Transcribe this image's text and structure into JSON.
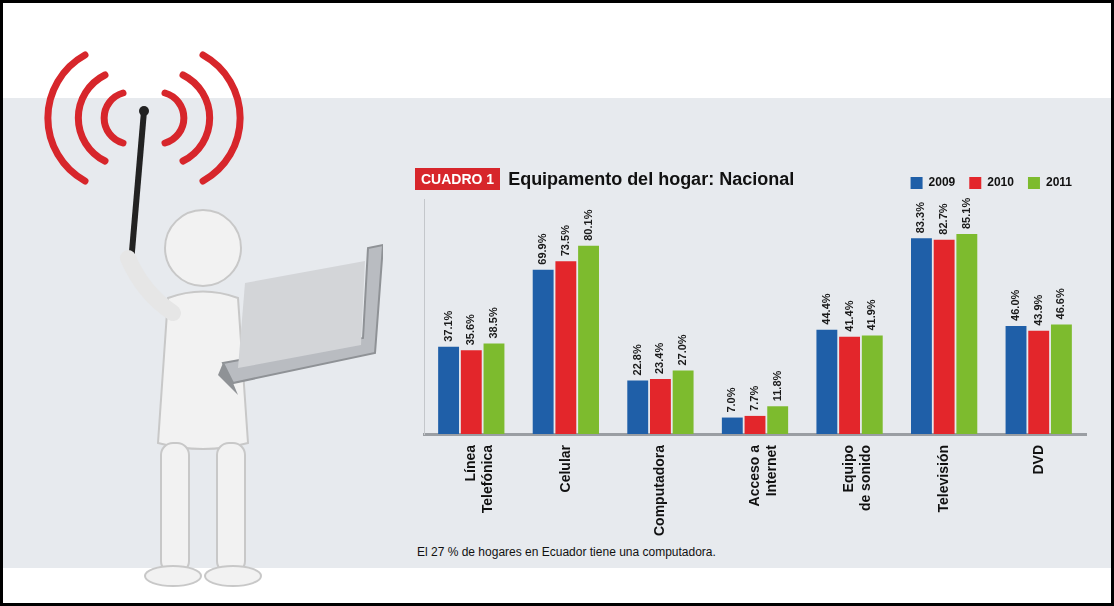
{
  "chart_data": {
    "type": "bar",
    "figure_label": "CUADRO 1",
    "title": "Equipamento del hogar: Nacional",
    "note": "El 27 % de hogares en Ecuador tiene una computadora.",
    "categories": [
      "Línea Telefónica",
      "Celular",
      "Computadora",
      "Acceso a Internet",
      "Equipo de sonido",
      "Televisión",
      "DVD"
    ],
    "series": [
      {
        "name": "2009",
        "color": "#1f5fa8",
        "values": [
          37.1,
          69.9,
          22.8,
          7.0,
          44.4,
          83.3,
          46.0
        ],
        "value_labels": [
          "37.1%",
          "69.9%",
          "22.8%",
          "7.0%",
          "44.4%",
          "83.3%",
          "46.0%"
        ]
      },
      {
        "name": "2010",
        "color": "#e3262b",
        "values": [
          35.6,
          73.5,
          23.4,
          7.7,
          41.4,
          82.7,
          43.9
        ],
        "value_labels": [
          "35.6%",
          "73.5%",
          "23.4%",
          "7.7%",
          "41.4%",
          "82.7%",
          "43.9%"
        ]
      },
      {
        "name": "2011",
        "color": "#7dbb2e",
        "values": [
          38.5,
          80.1,
          27.0,
          11.8,
          41.9,
          85.1,
          46.6
        ],
        "value_labels": [
          "38.5%",
          "80.1%",
          "27.0%",
          "11.8%",
          "41.9%",
          "85.1%",
          "46.6%"
        ]
      }
    ],
    "ylim": [
      0,
      100
    ],
    "grid": false,
    "legend": "upper right",
    "data_labels": true,
    "tick_labels": "x"
  }
}
